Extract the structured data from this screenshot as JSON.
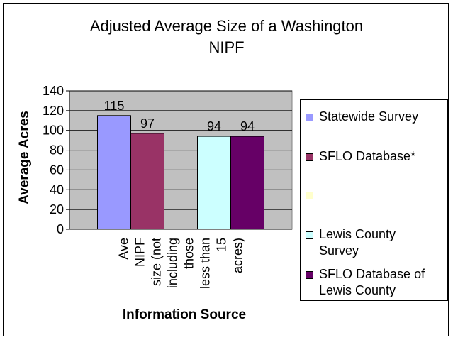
{
  "chart_data": {
    "type": "bar",
    "title": "Adjusted Average Size of a Washington\nNIPF",
    "xlabel": "Information Source",
    "ylabel": "Average Acres",
    "ylim": [
      0,
      140
    ],
    "yticks": [
      0,
      20,
      40,
      60,
      80,
      100,
      120,
      140
    ],
    "grid": true,
    "legend_position": "right",
    "category_label_lines": [
      "Ave",
      "NIPF",
      "size (not",
      "including",
      "those",
      "less than",
      "15",
      "acres)"
    ],
    "plot_background": "#c0c0c0",
    "series": [
      {
        "name": "Statewide Survey",
        "value": 115,
        "label": "115",
        "color": "#9999ff"
      },
      {
        "name": "SFLO Database*",
        "value": 97,
        "label": "97",
        "color": "#993366"
      },
      {
        "name": "",
        "value": null,
        "label": "",
        "color": "#ffffcc"
      },
      {
        "name": "Lewis County\nSurvey",
        "value": 94,
        "label": "94",
        "color": "#ccffff"
      },
      {
        "name": "SFLO Database of\nLewis County",
        "value": 94,
        "label": "94",
        "color": "#660066"
      }
    ]
  }
}
